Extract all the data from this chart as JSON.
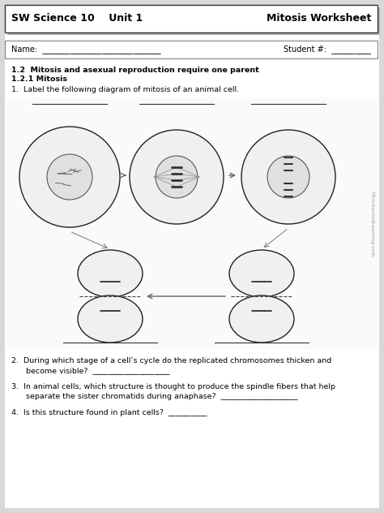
{
  "bg_color": "#ffffff",
  "page_bg": "#d8d8d8",
  "header_text_left": "SW Science 10    Unit 1",
  "header_text_right": "Mitosis Worksheet",
  "header_bg": "#ffffff",
  "header_border": "#000000",
  "shadow_color": "#b0b0b0",
  "name_label": "Name:  ______________________________",
  "student_label": "Student #:  __________",
  "section_bold1": "1.2  Mitosis and asexual reproduction require one parent",
  "section_bold2": "1.2.1 Mitosis",
  "q1": "1.  Label the following diagram of mitosis of an animal cell.",
  "q2_line1": "2.  During which stage of a cell’s cycle do the replicated chromosomes thicken and",
  "q2_line2": "      become visible?  ____________________",
  "q3_line1": "3.  In animal cells, which structure is thought to produce the spindle fibers that help",
  "q3_line2": "      separate the sister chromatids during anaphase?  ____________________",
  "q4": "4.  Is this structure found in plant cells?  __________",
  "watermark": "©EnchantedLearning.com"
}
